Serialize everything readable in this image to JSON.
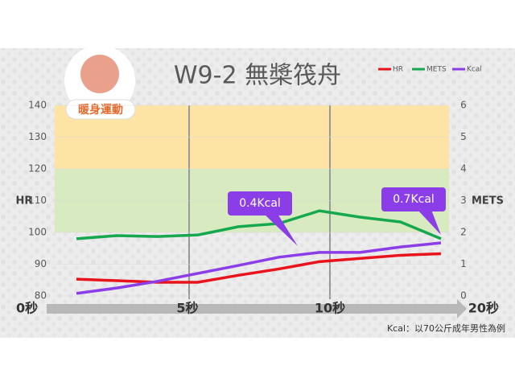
{
  "chart_data": {
    "type": "line",
    "title": "W9-2  無槳筏舟",
    "badge": "暖身運動",
    "y_label": "HR",
    "y2_label": "METS",
    "categories": [
      null,
      null,
      null,
      null,
      null,
      null,
      null,
      null,
      null,
      null
    ],
    "series": [
      {
        "name": "HR",
        "color": "#e8131b",
        "values": [
          85.3,
          84.8,
          84.3,
          84.3,
          86.5,
          88.5,
          90.8,
          91.8,
          92.8,
          93.3
        ]
      },
      {
        "name": "METS",
        "color": "#16a84f",
        "axis": "y2",
        "values": [
          1.8,
          1.9,
          1.87,
          1.92,
          2.18,
          2.28,
          2.68,
          2.48,
          2.33,
          1.8
        ]
      },
      {
        "name": "Kcal",
        "color": "#8b3ee8",
        "axis": "y2",
        "values": [
          0.08,
          0.25,
          0.46,
          0.71,
          0.96,
          1.22,
          1.37,
          1.37,
          1.54,
          1.67
        ]
      }
    ],
    "ylim": [
      80,
      140
    ],
    "yticks": [
      80,
      90,
      100,
      110,
      120,
      130,
      140
    ],
    "y2lim": [
      0,
      6
    ],
    "y2ticks": [
      0,
      1,
      2,
      3,
      4,
      5,
      6
    ],
    "time_labels": [
      "0秒",
      "5秒",
      "10秒",
      "20秒"
    ],
    "annotations": [
      "0.4Kcal",
      "0.7Kcal"
    ],
    "footnote": "Kcal：以70公斤成年男性為例",
    "legend": "top-right"
  }
}
